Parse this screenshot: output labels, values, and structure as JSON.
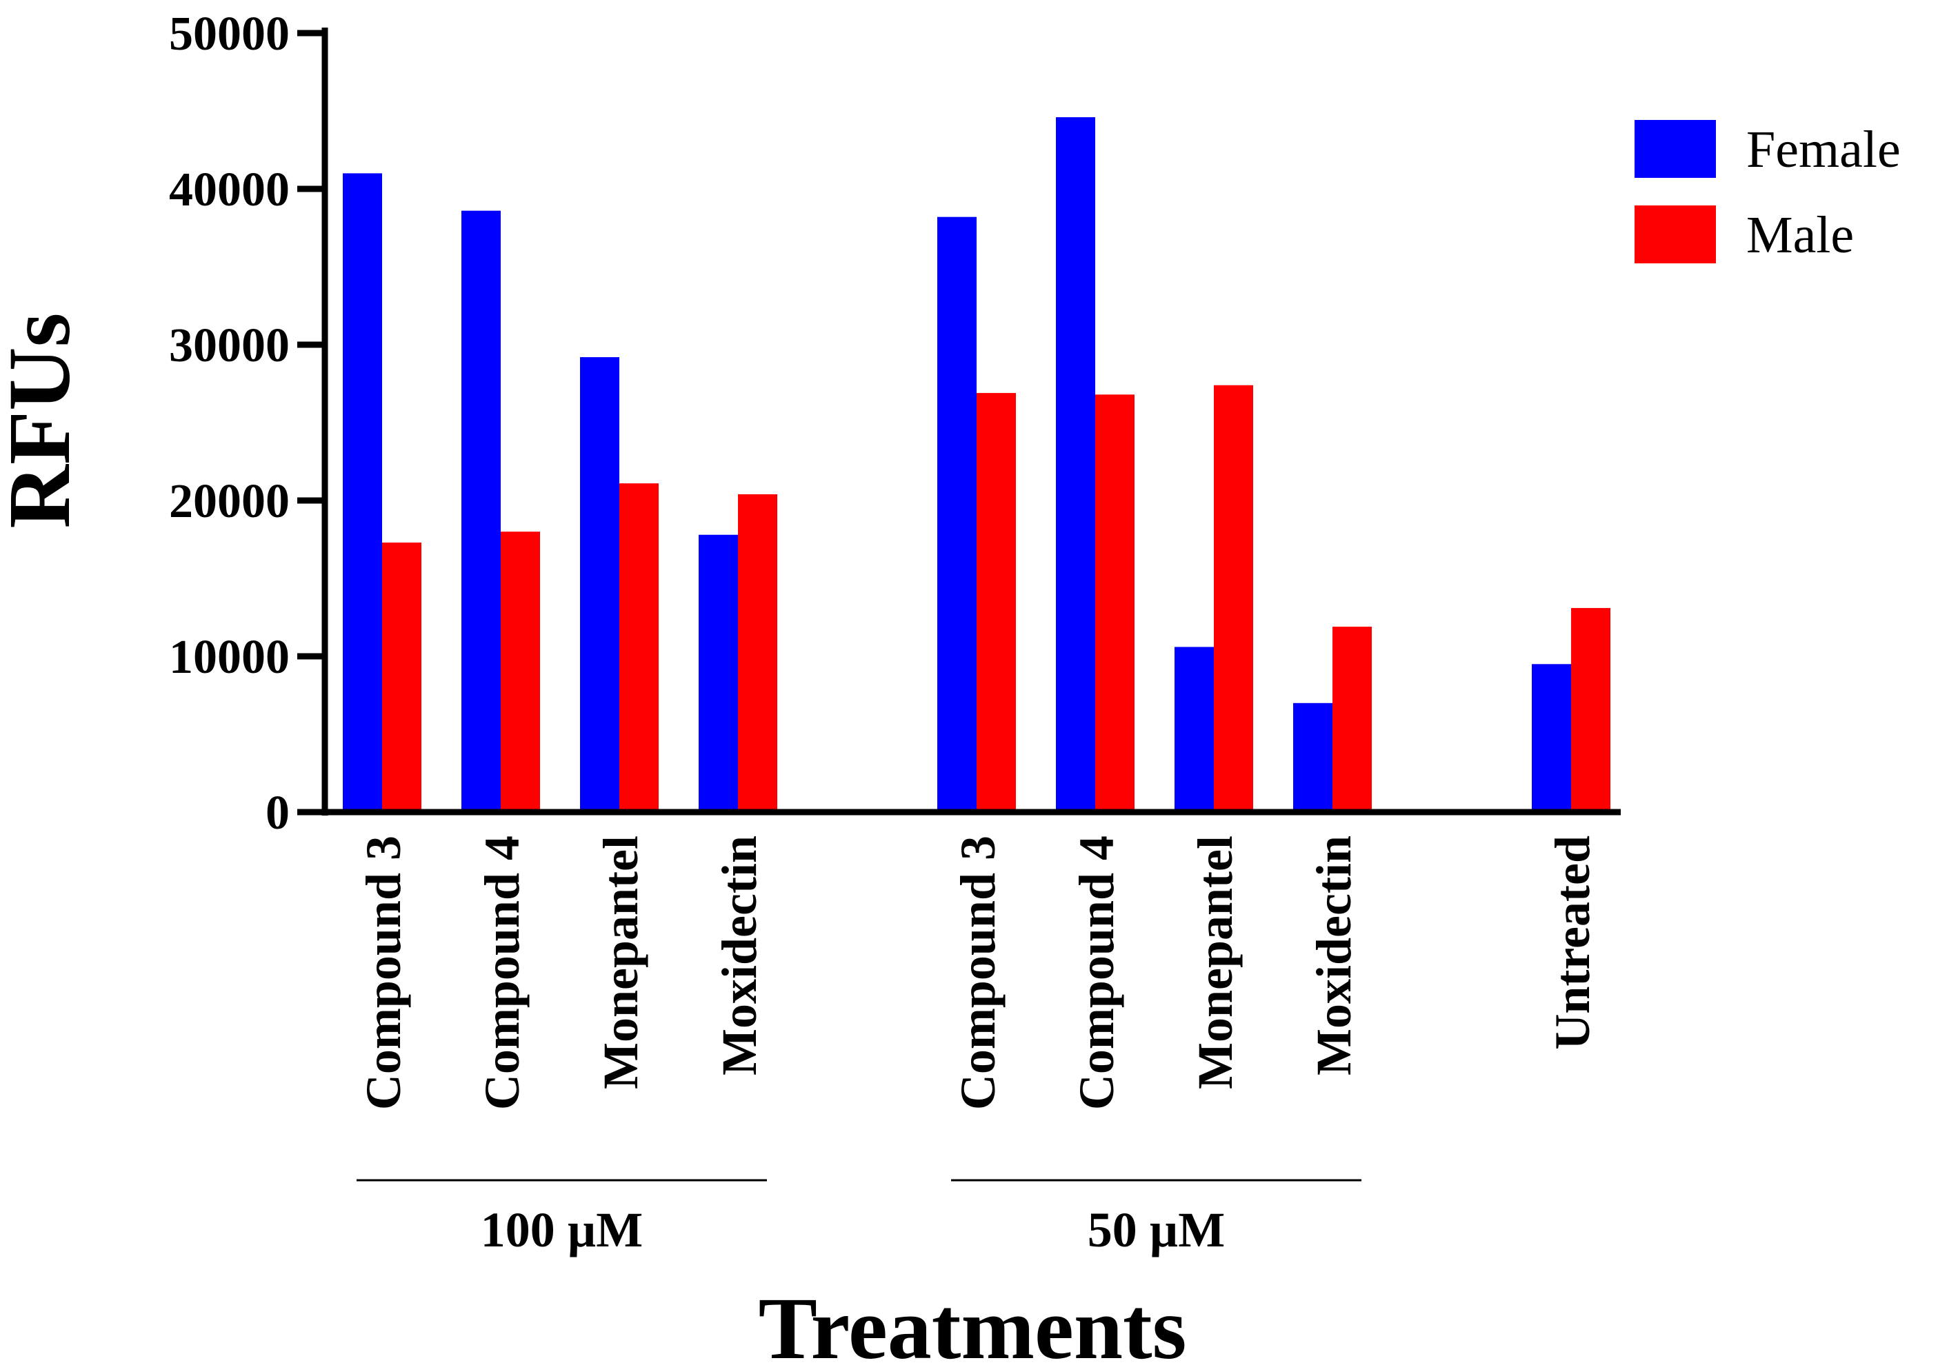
{
  "chart_data": {
    "type": "bar",
    "title": "",
    "xlabel": "Treatments",
    "ylabel": "RFUs",
    "ylim": [
      0,
      50000
    ],
    "yticks": [
      0,
      10000,
      20000,
      30000,
      40000,
      50000
    ],
    "ytick_labels": [
      "0",
      "10000",
      "20000",
      "30000",
      "40000",
      "50000"
    ],
    "grid": false,
    "legend_position": "top-right",
    "categories": [
      "Compound 3",
      "Compound 4",
      "Monepantel",
      "Moxidectin",
      "Compound 3",
      "Compound 4",
      "Monepantel",
      "Moxidectin",
      "Untreated"
    ],
    "groups": [
      {
        "label": "100 µM",
        "categories": [
          0,
          1,
          2,
          3
        ]
      },
      {
        "label": "50 µM",
        "categories": [
          4,
          5,
          6,
          7
        ]
      }
    ],
    "series": [
      {
        "name": "Female",
        "color": "#0000ff",
        "values": [
          41000,
          38600,
          29200,
          17800,
          38200,
          44600,
          10600,
          7000,
          9500
        ]
      },
      {
        "name": "Male",
        "color": "#ff0000",
        "values": [
          17300,
          18000,
          21100,
          20400,
          26900,
          26800,
          27400,
          11900,
          13100
        ]
      }
    ]
  }
}
